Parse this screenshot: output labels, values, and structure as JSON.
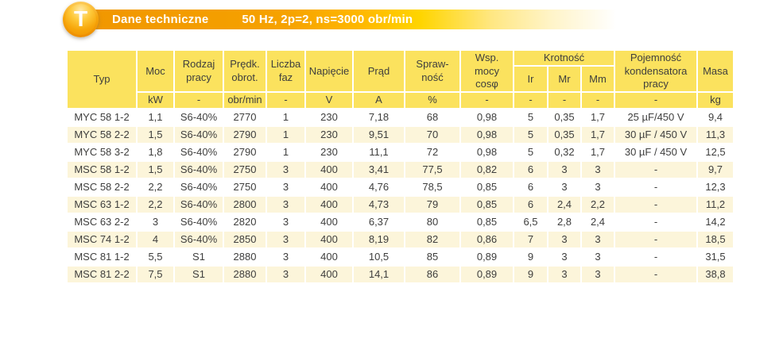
{
  "colors": {
    "banner_orange": "#F6A200",
    "banner_gold": "#FFD500",
    "header_yellow": "#FBE25E",
    "row_cream": "#FCF5DA",
    "text_dark": "#3E3E3D"
  },
  "banner": {
    "badge_letter": "T",
    "title": "Dane techniczne",
    "subtitle": "50 Hz, 2p=2, ns=3000 obr/min"
  },
  "table": {
    "column_keys": [
      "typ",
      "moc",
      "rodzaj_pracy",
      "predk_obrot",
      "liczba_faz",
      "napiecie",
      "prad",
      "sprawnosc",
      "wsp_mocy",
      "ir",
      "mr",
      "mm",
      "pojemnosc",
      "masa"
    ],
    "headers": {
      "typ": "Typ",
      "moc": "Moc",
      "rodzaj_pracy": "Rodzaj\npracy",
      "predk_obrot": "Prędk.\nobrot.",
      "liczba_faz": "Liczba\nfaz",
      "napiecie": "Napięcie",
      "prad": "Prąd",
      "sprawnosc": "Spraw-\nność",
      "wsp_mocy": "Wsp.\nmocy\ncosφ",
      "krotnosc": "Krotność",
      "ir": "Ir",
      "mr": "Mr",
      "mm": "Mm",
      "pojemnosc": "Pojemność\nkondensatora\npracy",
      "masa": "Masa"
    },
    "units": {
      "moc": "kW",
      "rodzaj_pracy": "-",
      "predk_obrot": "obr/min",
      "liczba_faz": "-",
      "napiecie": "V",
      "prad": "A",
      "sprawnosc": "%",
      "wsp_mocy": "-",
      "ir": "-",
      "mr": "-",
      "mm": "-",
      "pojemnosc": "-",
      "masa": "kg"
    },
    "rows": [
      [
        "MYC 58 1-2",
        "1,1",
        "S6-40%",
        "2770",
        "1",
        "230",
        "7,18",
        "68",
        "0,98",
        "5",
        "0,35",
        "1,7",
        "25 µF/450 V",
        "9,4"
      ],
      [
        "MYC 58 2-2",
        "1,5",
        "S6-40%",
        "2790",
        "1",
        "230",
        "9,51",
        "70",
        "0,98",
        "5",
        "0,35",
        "1,7",
        "30 µF / 450 V",
        "11,3"
      ],
      [
        "MYC 58 3-2",
        "1,8",
        "S6-40%",
        "2790",
        "1",
        "230",
        "11,1",
        "72",
        "0,98",
        "5",
        "0,32",
        "1,7",
        "30 µF / 450 V",
        "12,5"
      ],
      [
        "MSC 58 1-2",
        "1,5",
        "S6-40%",
        "2750",
        "3",
        "400",
        "3,41",
        "77,5",
        "0,82",
        "6",
        "3",
        "3",
        "-",
        "9,7"
      ],
      [
        "MSC 58 2-2",
        "2,2",
        "S6-40%",
        "2750",
        "3",
        "400",
        "4,76",
        "78,5",
        "0,85",
        "6",
        "3",
        "3",
        "-",
        "12,3"
      ],
      [
        "MSC 63 1-2",
        "2,2",
        "S6-40%",
        "2800",
        "3",
        "400",
        "4,73",
        "79",
        "0,85",
        "6",
        "2,4",
        "2,2",
        "-",
        "11,2"
      ],
      [
        "MSC 63 2-2",
        "3",
        "S6-40%",
        "2820",
        "3",
        "400",
        "6,37",
        "80",
        "0,85",
        "6,5",
        "2,8",
        "2,4",
        "-",
        "14,2"
      ],
      [
        "MSC 74 1-2",
        "4",
        "S6-40%",
        "2850",
        "3",
        "400",
        "8,19",
        "82",
        "0,86",
        "7",
        "3",
        "3",
        "-",
        "18,5"
      ],
      [
        "MSC 81 1-2",
        "5,5",
        "S1",
        "2880",
        "3",
        "400",
        "10,5",
        "85",
        "0,89",
        "9",
        "3",
        "3",
        "-",
        "31,5"
      ],
      [
        "MSC 81 2-2",
        "7,5",
        "S1",
        "2880",
        "3",
        "400",
        "14,1",
        "86",
        "0,89",
        "9",
        "3",
        "3",
        "-",
        "38,8"
      ]
    ]
  }
}
